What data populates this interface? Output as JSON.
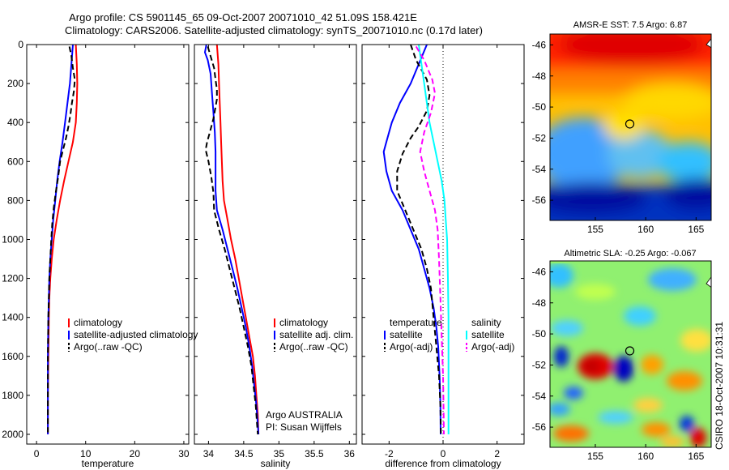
{
  "title_line1": "Argo profile: CS 5901145_65 09-Oct-2007 20071010_42 51.09S 158.421E",
  "title_line2": "Climatology: CARS2006. Satellite-adjusted climatology: synTS_20071010.nc (0.17d later)",
  "side_text": "CSIRO 18-Oct-2007 10:31:31",
  "colors": {
    "climatology": "#ff0000",
    "satellite": "#0000ff",
    "argo": "#000000",
    "sat_salinity": "#00ffff",
    "argo_adj_sal": "#ff00ff"
  },
  "chart_data": [
    {
      "type": "line",
      "xlabel": "temperature",
      "xlim": [
        -2,
        31
      ],
      "ylim": [
        0,
        2050
      ],
      "y_reversed": true,
      "xticks": [
        "0",
        "10",
        "20",
        "30"
      ],
      "yticks": [
        "0",
        "200",
        "400",
        "600",
        "800",
        "1000",
        "1200",
        "1400",
        "1600",
        "1800",
        "2000"
      ],
      "legend": [
        "climatology",
        "satellite-adjusted climatology",
        "Argo(..raw -QC)"
      ],
      "series": [
        {
          "name": "climatology",
          "color": "red",
          "dash": false,
          "points": [
            [
              8,
              0
            ],
            [
              8.2,
              100
            ],
            [
              8.3,
              200
            ],
            [
              8.2,
              300
            ],
            [
              8,
              400
            ],
            [
              7.4,
              500
            ],
            [
              6.5,
              600
            ],
            [
              5.6,
              700
            ],
            [
              4.8,
              800
            ],
            [
              4.1,
              900
            ],
            [
              3.5,
              1000
            ],
            [
              3.1,
              1100
            ],
            [
              2.8,
              1200
            ],
            [
              2.6,
              1300
            ],
            [
              2.5,
              1400
            ],
            [
              2.4,
              1600
            ],
            [
              2.3,
              1800
            ],
            [
              2.3,
              2000
            ]
          ]
        },
        {
          "name": "satellite-adjusted climatology",
          "color": "blue",
          "dash": false,
          "points": [
            [
              7.4,
              0
            ],
            [
              7.1,
              100
            ],
            [
              6.8,
              200
            ],
            [
              6.3,
              300
            ],
            [
              5.8,
              400
            ],
            [
              5.3,
              500
            ],
            [
              4.7,
              600
            ],
            [
              4.2,
              700
            ],
            [
              3.8,
              800
            ],
            [
              3.4,
              900
            ],
            [
              3.1,
              1000
            ],
            [
              2.8,
              1100
            ],
            [
              2.6,
              1200
            ],
            [
              2.5,
              1300
            ],
            [
              2.4,
              1400
            ],
            [
              2.3,
              1600
            ],
            [
              2.3,
              1800
            ],
            [
              2.3,
              2000
            ]
          ]
        },
        {
          "name": "Argo(..raw -QC)",
          "color": "black",
          "dash": true,
          "points": [
            [
              6.7,
              10
            ],
            [
              7.1,
              60
            ],
            [
              7.4,
              120
            ],
            [
              7.8,
              180
            ],
            [
              7.6,
              240
            ],
            [
              7.2,
              300
            ],
            [
              6.9,
              360
            ],
            [
              6.5,
              420
            ],
            [
              6,
              480
            ],
            [
              5.4,
              540
            ],
            [
              4.8,
              600
            ],
            [
              4.4,
              680
            ],
            [
              3.9,
              760
            ],
            [
              3.5,
              840
            ],
            [
              3.2,
              920
            ],
            [
              3,
              1000
            ],
            [
              2.8,
              1100
            ],
            [
              2.6,
              1200
            ],
            [
              2.5,
              1300
            ],
            [
              2.4,
              1400
            ],
            [
              2.3,
              1600
            ],
            [
              2.3,
              1800
            ],
            [
              2.3,
              1990
            ]
          ]
        }
      ]
    },
    {
      "type": "line",
      "xlabel": "salinity",
      "xlim": [
        33.8,
        36.1
      ],
      "ylim": [
        0,
        2050
      ],
      "y_reversed": true,
      "xticks": [
        "34",
        "34.5",
        "35",
        "35.5",
        "36"
      ],
      "legend": [
        "climatology",
        "satellite adj. clim.",
        "Argo(..raw -QC)"
      ],
      "annotation": [
        "Argo AUSTRALIA",
        "PI: Susan Wijffels"
      ],
      "series": [
        {
          "name": "climatology",
          "color": "red",
          "dash": false,
          "points": [
            [
              34.12,
              0
            ],
            [
              34.13,
              50
            ],
            [
              34.14,
              100
            ],
            [
              34.15,
              200
            ],
            [
              34.16,
              300
            ],
            [
              34.17,
              400
            ],
            [
              34.18,
              500
            ],
            [
              34.19,
              600
            ],
            [
              34.2,
              700
            ],
            [
              34.22,
              800
            ],
            [
              34.27,
              900
            ],
            [
              34.32,
              1000
            ],
            [
              34.38,
              1100
            ],
            [
              34.43,
              1200
            ],
            [
              34.48,
              1300
            ],
            [
              34.53,
              1400
            ],
            [
              34.58,
              1500
            ],
            [
              34.63,
              1600
            ],
            [
              34.66,
              1700
            ],
            [
              34.68,
              1800
            ],
            [
              34.7,
              1900
            ],
            [
              34.71,
              2000
            ]
          ]
        },
        {
          "name": "satellite adj. clim.",
          "color": "blue",
          "dash": false,
          "points": [
            [
              33.97,
              0
            ],
            [
              33.95,
              40
            ],
            [
              33.99,
              80
            ],
            [
              34.03,
              150
            ],
            [
              34.05,
              250
            ],
            [
              34.07,
              350
            ],
            [
              34.09,
              450
            ],
            [
              34.1,
              550
            ],
            [
              34.1,
              650
            ],
            [
              34.1,
              750
            ],
            [
              34.12,
              850
            ],
            [
              34.2,
              950
            ],
            [
              34.27,
              1050
            ],
            [
              34.34,
              1150
            ],
            [
              34.41,
              1250
            ],
            [
              34.47,
              1350
            ],
            [
              34.53,
              1450
            ],
            [
              34.58,
              1550
            ],
            [
              34.62,
              1650
            ],
            [
              34.65,
              1750
            ],
            [
              34.68,
              1850
            ],
            [
              34.7,
              1950
            ],
            [
              34.71,
              2000
            ]
          ]
        },
        {
          "name": "Argo(..raw -QC)",
          "color": "black",
          "dash": true,
          "points": [
            [
              33.99,
              10
            ],
            [
              34.03,
              60
            ],
            [
              34.08,
              120
            ],
            [
              34.1,
              180
            ],
            [
              34.12,
              230
            ],
            [
              34.12,
              280
            ],
            [
              34.1,
              320
            ],
            [
              34.07,
              380
            ],
            [
              34.02,
              450
            ],
            [
              33.98,
              500
            ],
            [
              33.96,
              540
            ],
            [
              34,
              600
            ],
            [
              34.04,
              680
            ],
            [
              34.07,
              760
            ],
            [
              34.08,
              850
            ],
            [
              34.15,
              950
            ],
            [
              34.23,
              1050
            ],
            [
              34.3,
              1150
            ],
            [
              34.37,
              1250
            ],
            [
              34.44,
              1350
            ],
            [
              34.5,
              1450
            ],
            [
              34.56,
              1550
            ],
            [
              34.61,
              1650
            ],
            [
              34.64,
              1750
            ],
            [
              34.67,
              1850
            ],
            [
              34.69,
              1950
            ],
            [
              34.7,
              2000
            ]
          ]
        }
      ]
    },
    {
      "type": "line",
      "xlabel": "difference from climatology",
      "xlim": [
        -3,
        3
      ],
      "ylim": [
        0,
        2050
      ],
      "y_reversed": true,
      "xticks": [
        "-2",
        "0",
        "2"
      ],
      "zero_line": true,
      "legend_left": [
        "temperature",
        "satellite",
        "Argo(-adj)"
      ],
      "legend_right": [
        "salinity",
        "satellite",
        "Argo(-adj)"
      ],
      "series": [
        {
          "name": "temperature satellite",
          "color": "blue",
          "dash": false,
          "points": [
            [
              -0.6,
              0
            ],
            [
              -0.9,
              100
            ],
            [
              -1.2,
              200
            ],
            [
              -1.6,
              300
            ],
            [
              -1.9,
              400
            ],
            [
              -2.1,
              500
            ],
            [
              -2.2,
              550
            ],
            [
              -2.1,
              650
            ],
            [
              -1.9,
              750
            ],
            [
              -1.5,
              850
            ],
            [
              -1.2,
              950
            ],
            [
              -0.9,
              1050
            ],
            [
              -0.7,
              1150
            ],
            [
              -0.5,
              1250
            ],
            [
              -0.35,
              1350
            ],
            [
              -0.25,
              1450
            ],
            [
              -0.18,
              1550
            ],
            [
              -0.13,
              1700
            ],
            [
              -0.1,
              1850
            ],
            [
              -0.09,
              2000
            ]
          ]
        },
        {
          "name": "temperature Argo(-adj)",
          "color": "black",
          "dash": true,
          "points": [
            [
              -1.2,
              0
            ],
            [
              -1,
              80
            ],
            [
              -0.6,
              180
            ],
            [
              -0.5,
              260
            ],
            [
              -0.6,
              340
            ],
            [
              -0.9,
              420
            ],
            [
              -1.2,
              480
            ],
            [
              -1.5,
              560
            ],
            [
              -1.7,
              650
            ],
            [
              -1.7,
              750
            ],
            [
              -1.4,
              850
            ],
            [
              -1.1,
              950
            ],
            [
              -0.8,
              1050
            ],
            [
              -0.6,
              1150
            ],
            [
              -0.45,
              1250
            ],
            [
              -0.35,
              1400
            ],
            [
              -0.25,
              1550
            ],
            [
              -0.15,
              1700
            ],
            [
              -0.1,
              1850
            ],
            [
              -0.08,
              2000
            ]
          ]
        },
        {
          "name": "salinity satellite",
          "color": "cyan",
          "dash": false,
          "points": [
            [
              -0.9,
              0
            ],
            [
              -0.8,
              100
            ],
            [
              -0.7,
              200
            ],
            [
              -0.6,
              300
            ],
            [
              -0.5,
              400
            ],
            [
              -0.35,
              500
            ],
            [
              -0.2,
              600
            ],
            [
              -0.05,
              700
            ],
            [
              0.05,
              800
            ],
            [
              0.1,
              900
            ],
            [
              0.15,
              1000
            ],
            [
              0.18,
              1200
            ],
            [
              0.2,
              1400
            ],
            [
              0.2,
              1600
            ],
            [
              0.2,
              1800
            ],
            [
              0.2,
              2000
            ]
          ]
        },
        {
          "name": "salinity Argo(-adj)",
          "color": "magenta",
          "dash": true,
          "points": [
            [
              -1,
              10
            ],
            [
              -0.7,
              80
            ],
            [
              -0.4,
              180
            ],
            [
              -0.3,
              250
            ],
            [
              -0.45,
              350
            ],
            [
              -0.7,
              450
            ],
            [
              -0.85,
              550
            ],
            [
              -0.7,
              650
            ],
            [
              -0.5,
              750
            ],
            [
              -0.3,
              850
            ],
            [
              -0.2,
              950
            ],
            [
              -0.15,
              1100
            ],
            [
              -0.1,
              1300
            ],
            [
              -0.05,
              1500
            ],
            [
              0,
              1700
            ],
            [
              0.02,
              1900
            ],
            [
              0.03,
              2000
            ]
          ]
        }
      ]
    },
    {
      "type": "heatmap",
      "title": "AMSR-E SST: 7.5 Argo: 6.87",
      "xlim": [
        150.5,
        166.5
      ],
      "ylim": [
        -57.3,
        -45.3
      ],
      "xticks": [
        "155",
        "160",
        "165"
      ],
      "yticks": [
        "-46",
        "-48",
        "-50",
        "-52",
        "-54",
        "-56"
      ],
      "colormap": "jet",
      "marker": {
        "lon": 158.421,
        "lat": -51.09
      }
    },
    {
      "type": "heatmap",
      "title": "Altimetric SLA: -0.25 Argo: -0.067",
      "xlim": [
        150.5,
        166.5
      ],
      "ylim": [
        -57.3,
        -45.3
      ],
      "xticks": [
        "155",
        "160",
        "165"
      ],
      "yticks": [
        "-46",
        "-48",
        "-50",
        "-52",
        "-54",
        "-56"
      ],
      "colormap": "jet",
      "marker": {
        "lon": 158.421,
        "lat": -51.09
      }
    }
  ]
}
